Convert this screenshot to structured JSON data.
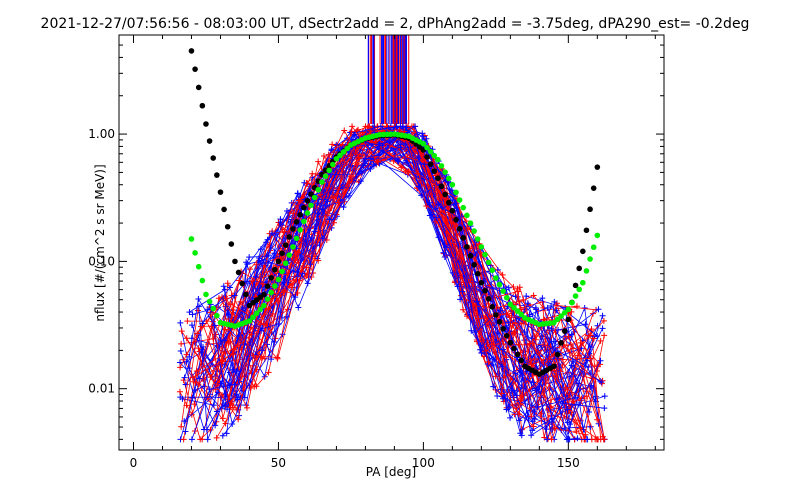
{
  "chart_data": {
    "type": "scatter",
    "title": "2021-12-27/07:56:56 - 08:03:00 UT, dSectr2add = 2, dPhAng2add = -3.75deg, dPA290_est=  -0.2deg",
    "xlabel": "PA [deg]",
    "ylabel": "nflux [#/(cm^2 s sr MeV)]",
    "xlim": [
      -5,
      183
    ],
    "ylim": [
      0.0033,
      6.0
    ],
    "yscale": "log",
    "grid": false,
    "x_ticks": [
      0,
      50,
      100,
      150
    ],
    "x_tick_labels": [
      "0",
      "50",
      "100",
      "150"
    ],
    "y_ticks": [
      0.01,
      0.1,
      1.0
    ],
    "y_tick_labels": [
      "0.01",
      "0.10",
      "1.00"
    ],
    "colors": {
      "red_traces": "#ff0000",
      "blue_traces": "#0000ff",
      "black_fit": "#000000",
      "green_fit": "#00ee00",
      "axes": "#000000"
    },
    "series": [
      {
        "color": "#000000",
        "style": "thick dots",
        "x": [
          20,
          25,
          30,
          35,
          40,
          45,
          50,
          55,
          60,
          65,
          70,
          75,
          80,
          85,
          90,
          95,
          100,
          105,
          110,
          115,
          120,
          125,
          130,
          135,
          140,
          145,
          150,
          155,
          160
        ],
        "y": [
          4.5,
          1.2,
          0.35,
          0.1,
          0.045,
          0.055,
          0.1,
          0.18,
          0.3,
          0.48,
          0.66,
          0.82,
          0.92,
          0.97,
          0.99,
          0.93,
          0.75,
          0.45,
          0.25,
          0.13,
          0.068,
          0.038,
          0.023,
          0.015,
          0.013,
          0.015,
          0.035,
          0.12,
          0.55
        ]
      },
      {
        "color": "#00ee00",
        "style": "thick dots",
        "x": [
          20,
          25,
          30,
          35,
          40,
          45,
          50,
          55,
          60,
          65,
          70,
          75,
          80,
          85,
          90,
          95,
          100,
          105,
          110,
          115,
          120,
          125,
          130,
          135,
          140,
          145,
          150,
          155,
          160
        ],
        "y": [
          0.15,
          0.055,
          0.033,
          0.031,
          0.034,
          0.045,
          0.072,
          0.13,
          0.24,
          0.42,
          0.64,
          0.82,
          0.93,
          0.99,
          1.0,
          0.96,
          0.84,
          0.63,
          0.4,
          0.23,
          0.13,
          0.074,
          0.046,
          0.036,
          0.032,
          0.033,
          0.042,
          0.068,
          0.16
        ]
      }
    ],
    "trace_envelope": {
      "note": "",
      "center_x": [
        16,
        20,
        25,
        30,
        35,
        40,
        45,
        50,
        55,
        60,
        65,
        70,
        75,
        80,
        85,
        90,
        95,
        100,
        105,
        110,
        115,
        120,
        125,
        130,
        135,
        140,
        145,
        150,
        155,
        160
      ],
      "center_y": [
        0.012,
        0.013,
        0.014,
        0.016,
        0.02,
        0.028,
        0.04,
        0.06,
        0.1,
        0.17,
        0.28,
        0.45,
        0.65,
        0.8,
        0.88,
        0.9,
        0.78,
        0.55,
        0.32,
        0.17,
        0.09,
        0.05,
        0.03,
        0.02,
        0.016,
        0.014,
        0.013,
        0.012,
        0.011,
        0.011
      ],
      "vertical_spikes_x_range": [
        81,
        95
      ],
      "vertical_spikes_y_range": [
        1.2,
        6.0
      ]
    }
  }
}
